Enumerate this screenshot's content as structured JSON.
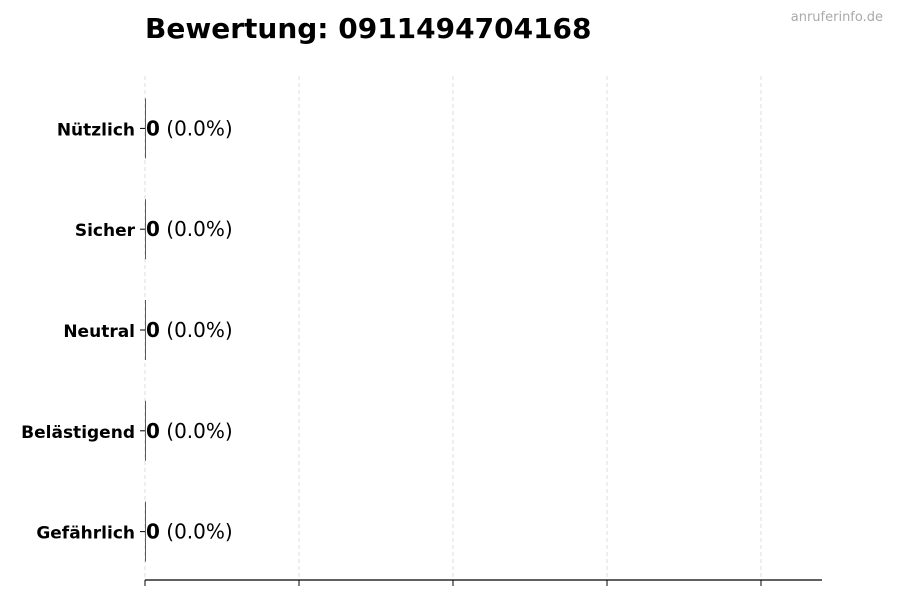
{
  "chart_data": {
    "type": "bar",
    "orientation": "horizontal",
    "title": "Bewertung: 0911494704168",
    "categories": [
      "Nützlich",
      "Sicher",
      "Neutral",
      "Belästigend",
      "Gefährlich"
    ],
    "values": [
      0,
      0,
      0,
      0,
      0
    ],
    "data_labels": [
      {
        "count": "0",
        "percent": "(0.0%)"
      },
      {
        "count": "0",
        "percent": "(0.0%)"
      },
      {
        "count": "0",
        "percent": "(0.0%)"
      },
      {
        "count": "0",
        "percent": "(0.0%)"
      },
      {
        "count": "0",
        "percent": "(0.0%)"
      }
    ],
    "xlabel": "",
    "ylabel": "",
    "x_tick_labels_shown": false,
    "grid": "vertical dashed",
    "colors": {
      "grid": "#dddddd",
      "axis": "#000000",
      "bar": "#333333"
    }
  },
  "watermark": "anruferinfo.de"
}
